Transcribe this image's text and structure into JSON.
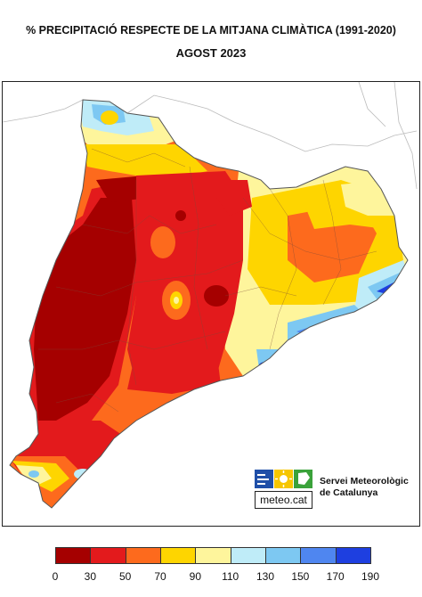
{
  "title": "% PRECIPITACIÓ RESPECTE DE LA MITJANA CLIMÀTICA (1991-2020)",
  "subtitle": "AGOST 2023",
  "logo": {
    "brand": "meteo.cat",
    "org_line1": "Servei Meteorològic",
    "org_line2": "de Catalunya"
  },
  "legend": {
    "classes": [
      {
        "range": "0-30",
        "color": "#a50000"
      },
      {
        "range": "30-50",
        "color": "#e31a1c"
      },
      {
        "range": "50-70",
        "color": "#fd6a1d"
      },
      {
        "range": "70-90",
        "color": "#fed500"
      },
      {
        "range": "90-110",
        "color": "#fef59c"
      },
      {
        "range": "110-130",
        "color": "#bfecf8"
      },
      {
        "range": "130-150",
        "color": "#7dc8f2"
      },
      {
        "range": "150-170",
        "color": "#4f86f0"
      },
      {
        "range": "170-190",
        "color": "#1e3fe0"
      }
    ],
    "ticks": [
      "0",
      "30",
      "50",
      "70",
      "90",
      "110",
      "130",
      "150",
      "170",
      "190"
    ]
  }
}
